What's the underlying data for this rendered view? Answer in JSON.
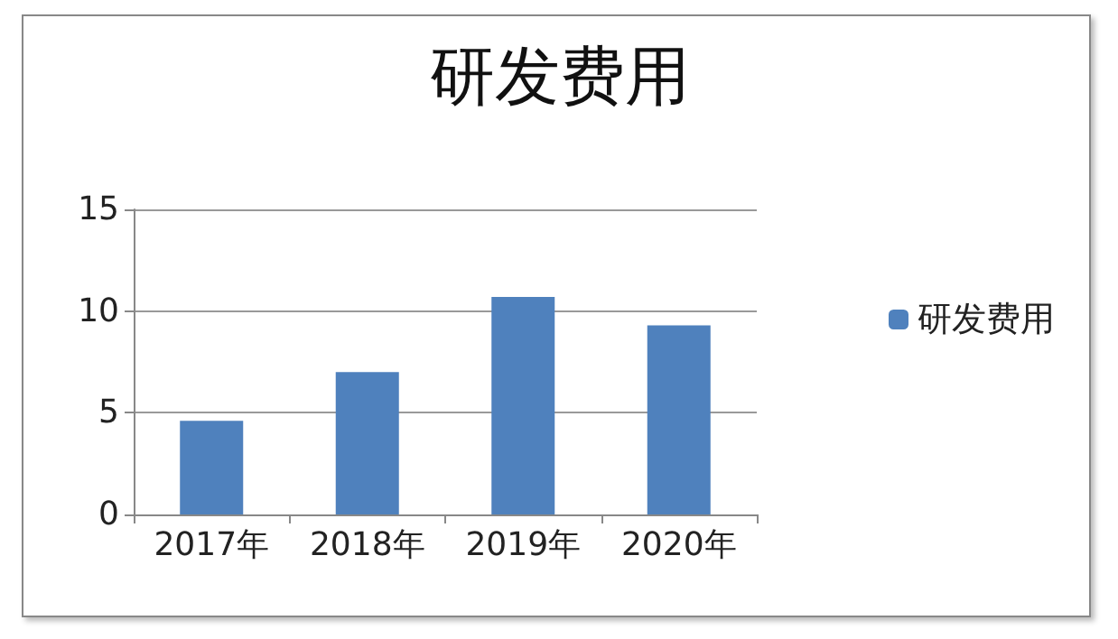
{
  "chart_data": {
    "type": "bar",
    "title": "研发费用",
    "categories": [
      "2017年",
      "2018年",
      "2019年",
      "2020年"
    ],
    "series": [
      {
        "name": "研发费用",
        "color": "#4f81bd",
        "values": [
          4.6,
          7.0,
          10.7,
          9.3
        ]
      }
    ],
    "ylim": [
      0,
      15
    ],
    "yticks": [
      0,
      5,
      10,
      15
    ],
    "grid": "y",
    "legend": "right"
  }
}
